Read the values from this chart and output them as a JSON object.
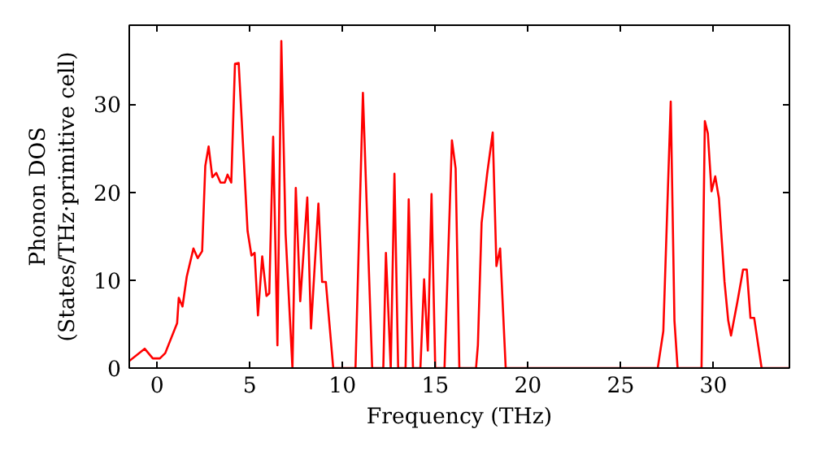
{
  "chart_data": {
    "type": "line",
    "xlabel": "Frequency (THz)",
    "ylabel": "Phonon DOS\n(States/THz·primitive cell)",
    "xlim": [
      -1.5,
      34.1
    ],
    "ylim": [
      0,
      39
    ],
    "xticks": [
      0,
      5,
      10,
      15,
      20,
      25,
      30
    ],
    "yticks": [
      0,
      10,
      20,
      30
    ],
    "grid": false,
    "series": [
      {
        "color": "#ff0000",
        "x": [
          -1.5,
          -0.67,
          -0.23,
          0.15,
          0.44,
          1.08,
          1.17,
          1.37,
          1.6,
          1.96,
          2.19,
          2.43,
          2.6,
          2.78,
          2.98,
          3.19,
          3.42,
          3.65,
          3.8,
          4.0,
          4.2,
          4.4,
          4.88,
          5.09,
          5.26,
          5.44,
          5.67,
          5.9,
          6.05,
          6.26,
          6.49,
          6.7,
          6.93,
          7.3,
          7.48,
          7.72,
          8.1,
          8.3,
          8.7,
          8.9,
          9.1,
          9.5,
          10.7,
          11.1,
          11.6,
          12.2,
          12.34,
          12.6,
          12.8,
          13.0,
          13.4,
          13.57,
          13.8,
          14.2,
          14.4,
          14.6,
          14.8,
          15.0,
          15.5,
          15.9,
          16.1,
          16.3,
          17.2,
          17.3,
          17.5,
          17.8,
          18.1,
          18.3,
          18.5,
          18.8,
          27.0,
          27.3,
          27.7,
          27.9,
          28.07,
          29.36,
          29.54,
          29.7,
          29.9,
          30.1,
          30.3,
          30.6,
          30.8,
          30.95,
          31.3,
          31.6,
          31.8,
          32.0,
          32.2,
          32.6,
          34.1
        ],
        "values": [
          0.8,
          2.2,
          1.1,
          1.1,
          1.7,
          5.1,
          8.0,
          7.0,
          10.4,
          13.6,
          12.5,
          13.3,
          23.0,
          25.2,
          21.7,
          22.2,
          21.1,
          21.1,
          22.0,
          21.1,
          34.6,
          34.7,
          15.6,
          12.8,
          13.1,
          6.0,
          12.7,
          8.2,
          8.5,
          26.3,
          2.6,
          37.2,
          15.3,
          0,
          20.5,
          7.6,
          19.4,
          4.5,
          18.7,
          9.8,
          9.8,
          0,
          0,
          31.3,
          0,
          0,
          13.1,
          0,
          22.1,
          0,
          0,
          19.2,
          0,
          0,
          10.1,
          2.0,
          19.8,
          0,
          0,
          25.9,
          22.7,
          0,
          0,
          2.6,
          16.5,
          22.1,
          26.8,
          11.6,
          13.6,
          0,
          0,
          4.2,
          30.3,
          5.4,
          0,
          0,
          28.1,
          26.7,
          20.1,
          21.8,
          19.3,
          9.8,
          5.4,
          3.7,
          7.6,
          11.2,
          11.2,
          5.7,
          5.7,
          0,
          0
        ]
      }
    ]
  }
}
